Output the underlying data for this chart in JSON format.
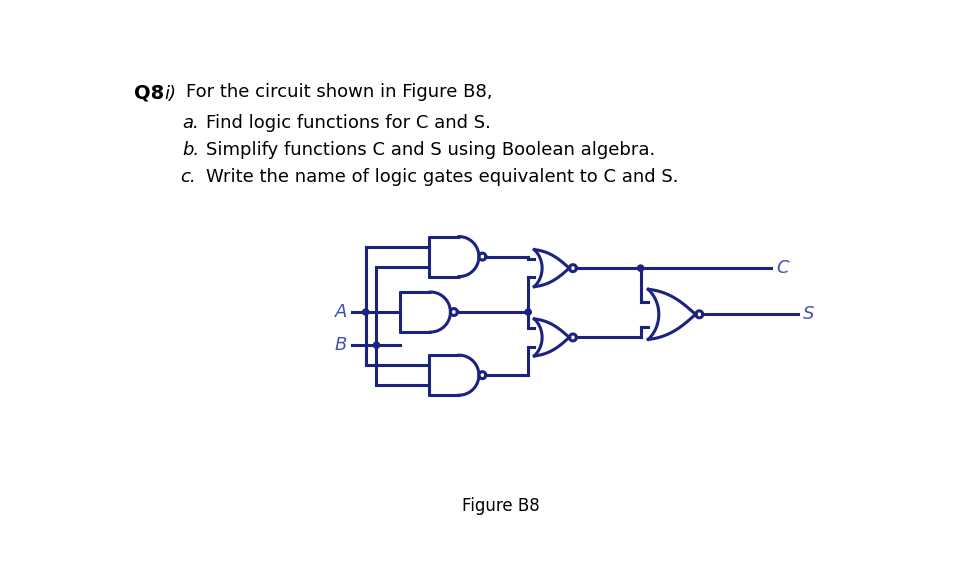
{
  "title_q": "Q8",
  "title_i": "i)",
  "title_text": "For the circuit shown in Figure B8,",
  "items": [
    {
      "label": "a.",
      "text": "Find logic functions for C and S."
    },
    {
      "label": "b.",
      "text": "Simplify functions C and S using Boolean algebra."
    },
    {
      "label": "c.",
      "text": "Write the name of logic gates equivalent to C and S."
    }
  ],
  "figure_label": "Figure B8",
  "gate_color": "#1a237e",
  "bg_color": "#ffffff",
  "text_color": "#000000",
  "label_color": "#3f51b5"
}
